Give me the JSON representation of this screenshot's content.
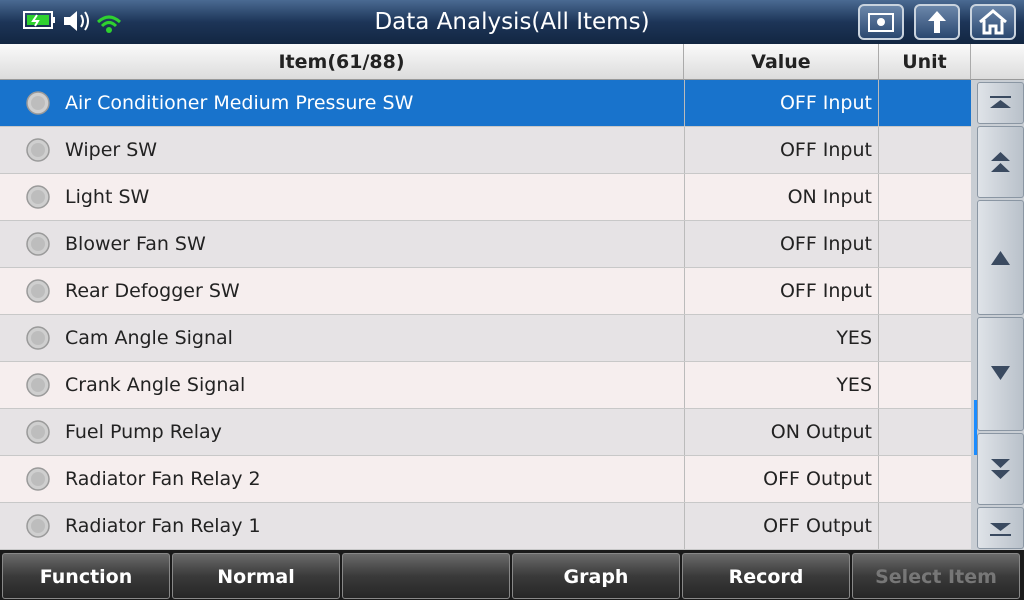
{
  "header": {
    "title": "Data Analysis(All Items)"
  },
  "table": {
    "columns": [
      "Item(61/88)",
      "Value",
      "Unit"
    ],
    "selected_row": 0,
    "rows": [
      {
        "item": "Air Conditioner Medium Pressure SW",
        "value": "OFF Input"
      },
      {
        "item": "Wiper SW",
        "value": "OFF Input"
      },
      {
        "item": "Light SW",
        "value": "ON Input"
      },
      {
        "item": "Blower Fan SW",
        "value": "OFF Input"
      },
      {
        "item": "Rear Defogger SW",
        "value": "OFF Input"
      },
      {
        "item": "Cam Angle Signal",
        "value": "YES"
      },
      {
        "item": "Crank Angle Signal",
        "value": "YES"
      },
      {
        "item": "Fuel Pump Relay",
        "value": "ON Output"
      },
      {
        "item": "Radiator Fan Relay 2",
        "value": "OFF Output"
      },
      {
        "item": "Radiator Fan Relay 1",
        "value": "OFF Output"
      }
    ]
  },
  "footer": {
    "buttons": [
      {
        "label": "Function",
        "enabled": true
      },
      {
        "label": "Normal",
        "enabled": true
      },
      {
        "label": "Graph",
        "enabled": true
      },
      {
        "label": "Record",
        "enabled": true
      },
      {
        "label": "Select Item",
        "enabled": false
      }
    ]
  }
}
